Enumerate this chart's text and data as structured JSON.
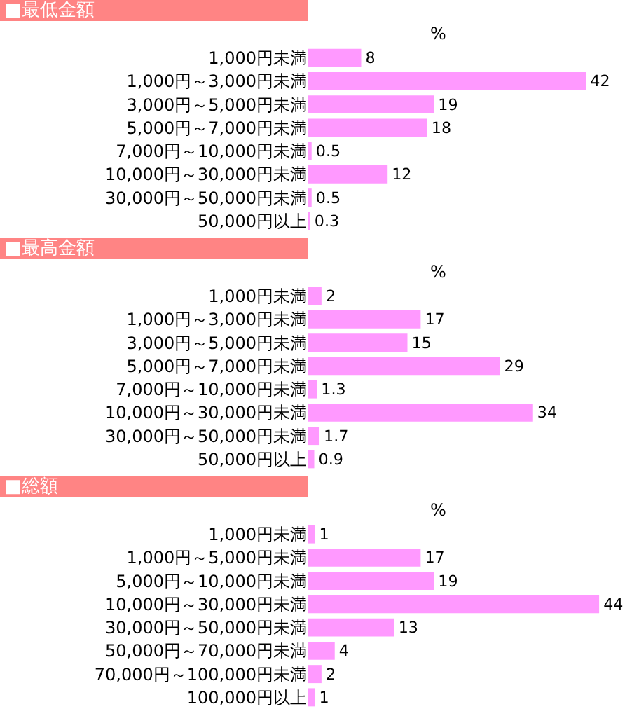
{
  "chart_data": [
    {
      "type": "bar",
      "orientation": "horizontal",
      "title": "■最低金額",
      "annotations": [
        "%"
      ],
      "data_labels": true,
      "grid": false,
      "legend": false,
      "tick_labels": "y",
      "categories": [
        "1,000円未満",
        "1,000円～3,000円未満",
        "3,000円～5,000円未満",
        "5,000円～7,000円未満",
        "7,000円～10,000円未満",
        "10,000円～30,000円未満",
        "30,000円～50,000円未満",
        "50,000円以上"
      ],
      "color": "#ff99ff",
      "values": [
        8,
        42,
        19,
        18,
        0.5,
        12,
        0.5,
        0.3
      ]
    },
    {
      "type": "bar",
      "orientation": "horizontal",
      "title": "■最高金額",
      "annotations": [
        "%"
      ],
      "data_labels": true,
      "grid": false,
      "legend": false,
      "tick_labels": "y",
      "categories": [
        "1,000円未満",
        "1,000円～3,000円未満",
        "3,000円～5,000円未満",
        "5,000円～7,000円未満",
        "7,000円～10,000円未満",
        "10,000円～30,000円未満",
        "30,000円～50,000円未満",
        "50,000円以上"
      ],
      "color": "#ff99ff",
      "values": [
        2,
        17,
        15,
        29,
        1.3,
        34,
        1.7,
        0.9
      ]
    },
    {
      "type": "bar",
      "orientation": "horizontal",
      "title": "■総額",
      "annotations": [
        "%"
      ],
      "data_labels": true,
      "grid": false,
      "legend": false,
      "tick_labels": "y",
      "categories": [
        "1,000円未満",
        "1,000円～5,000円未満",
        "5,000円～10,000円未満",
        "10,000円～30,000円未満",
        "30,000円～50,000円未満",
        "50,000円～70,000円未満",
        "70,000円～100,000円未満",
        "100,000円以上"
      ],
      "color": "#ff99ff",
      "values": [
        1,
        17,
        19,
        44,
        13,
        4,
        2,
        1
      ]
    }
  ]
}
